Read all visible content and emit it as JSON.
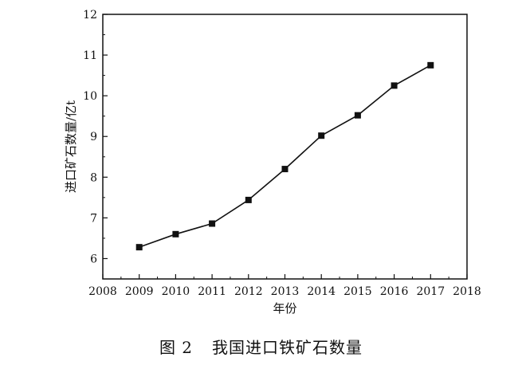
{
  "chart_data": {
    "type": "line",
    "title": "",
    "xlabel": "年份",
    "ylabel": "进口矿石数量/亿t",
    "xlim": [
      2008,
      2018
    ],
    "ylim": [
      5.5,
      12
    ],
    "x_ticks": [
      2008,
      2009,
      2010,
      2011,
      2012,
      2013,
      2014,
      2015,
      2016,
      2017,
      2018
    ],
    "y_ticks": [
      6,
      7,
      8,
      9,
      10,
      11,
      12
    ],
    "grid": false,
    "legend": "none",
    "marker": "square",
    "series": [
      {
        "x": [
          2009,
          2010,
          2011,
          2012,
          2013,
          2014,
          2015,
          2016,
          2017
        ],
        "y": [
          6.28,
          6.6,
          6.86,
          7.44,
          8.2,
          9.02,
          9.52,
          10.25,
          10.75
        ]
      }
    ],
    "colors": {
      "line": "#111111",
      "marker": "#111111",
      "frame": "#111111"
    }
  },
  "caption": {
    "label": "图 2",
    "text": "我国进口铁矿石数量"
  }
}
